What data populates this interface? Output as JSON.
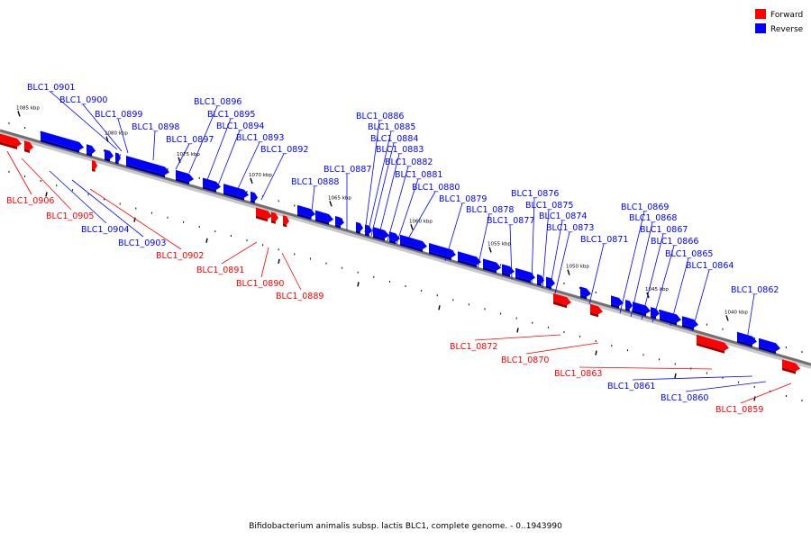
{
  "caption": "Bifidobacterium animalis subsp. lactis BLC1, complete genome. - 0..1943990",
  "legend": [
    {
      "label": "Forward",
      "color": "#ff0000"
    },
    {
      "label": "Reverse",
      "color": "#0000ff"
    }
  ],
  "colors": {
    "forward": "#ff0000",
    "reverse": "#0000ff",
    "backbone": "#808080"
  },
  "tick_labels": [
    "1085 kbp",
    "1080 kbp",
    "1075 kbp",
    "1070 kbp",
    "1065 kbp",
    "1060 kbp",
    "1055 kbp",
    "1050 kbp",
    "1045 kbp",
    "1040 kbp"
  ],
  "genes": [
    {
      "id": "BLC1_0901",
      "strand": "reverse"
    },
    {
      "id": "BLC1_0900",
      "strand": "reverse"
    },
    {
      "id": "BLC1_0899",
      "strand": "reverse"
    },
    {
      "id": "BLC1_0898",
      "strand": "reverse"
    },
    {
      "id": "BLC1_0897",
      "strand": "reverse"
    },
    {
      "id": "BLC1_0896",
      "strand": "reverse"
    },
    {
      "id": "BLC1_0895",
      "strand": "reverse"
    },
    {
      "id": "BLC1_0894",
      "strand": "reverse"
    },
    {
      "id": "BLC1_0893",
      "strand": "reverse"
    },
    {
      "id": "BLC1_0892",
      "strand": "reverse"
    },
    {
      "id": "BLC1_0906",
      "strand": "forward"
    },
    {
      "id": "BLC1_0905",
      "strand": "forward"
    },
    {
      "id": "BLC1_0904",
      "strand": "reverse"
    },
    {
      "id": "BLC1_0903",
      "strand": "reverse"
    },
    {
      "id": "BLC1_0902",
      "strand": "forward"
    },
    {
      "id": "BLC1_0891",
      "strand": "forward"
    },
    {
      "id": "BLC1_0890",
      "strand": "forward"
    },
    {
      "id": "BLC1_0889",
      "strand": "forward"
    },
    {
      "id": "BLC1_0886",
      "strand": "reverse"
    },
    {
      "id": "BLC1_0885",
      "strand": "reverse"
    },
    {
      "id": "BLC1_0884",
      "strand": "reverse"
    },
    {
      "id": "BLC1_0883",
      "strand": "reverse"
    },
    {
      "id": "BLC1_0882",
      "strand": "reverse"
    },
    {
      "id": "BLC1_0881",
      "strand": "reverse"
    },
    {
      "id": "BLC1_0880",
      "strand": "reverse"
    },
    {
      "id": "BLC1_0887",
      "strand": "reverse"
    },
    {
      "id": "BLC1_0888",
      "strand": "reverse"
    },
    {
      "id": "BLC1_0879",
      "strand": "reverse"
    },
    {
      "id": "BLC1_0878",
      "strand": "reverse"
    },
    {
      "id": "BLC1_0877",
      "strand": "reverse"
    },
    {
      "id": "BLC1_0876",
      "strand": "reverse"
    },
    {
      "id": "BLC1_0875",
      "strand": "reverse"
    },
    {
      "id": "BLC1_0874",
      "strand": "reverse"
    },
    {
      "id": "BLC1_0873",
      "strand": "reverse"
    },
    {
      "id": "BLC1_0871",
      "strand": "reverse"
    },
    {
      "id": "BLC1_0872",
      "strand": "forward"
    },
    {
      "id": "BLC1_0870",
      "strand": "forward"
    },
    {
      "id": "BLC1_0869",
      "strand": "reverse"
    },
    {
      "id": "BLC1_0868",
      "strand": "reverse"
    },
    {
      "id": "BLC1_0867",
      "strand": "reverse"
    },
    {
      "id": "BLC1_0866",
      "strand": "reverse"
    },
    {
      "id": "BLC1_0865",
      "strand": "reverse"
    },
    {
      "id": "BLC1_0864",
      "strand": "reverse"
    },
    {
      "id": "BLC1_0862",
      "strand": "reverse"
    },
    {
      "id": "BLC1_0863",
      "strand": "forward"
    },
    {
      "id": "BLC1_0861",
      "strand": "reverse"
    },
    {
      "id": "BLC1_0860",
      "strand": "reverse"
    },
    {
      "id": "BLC1_0859",
      "strand": "forward"
    }
  ]
}
